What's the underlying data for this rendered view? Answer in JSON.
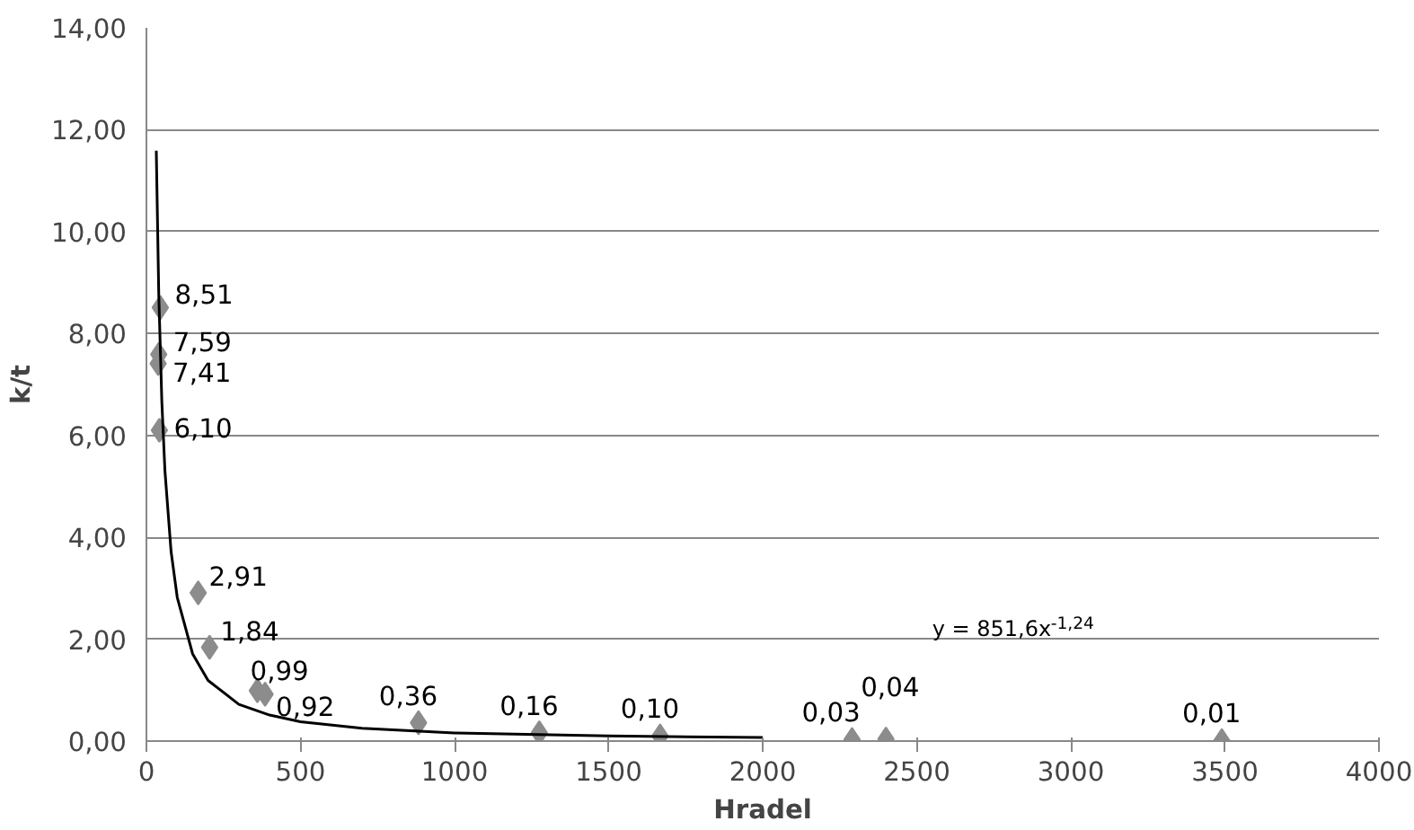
{
  "chart_data": {
    "type": "scatter",
    "xlabel": "Hradel",
    "ylabel": "k/t",
    "xlim": [
      0,
      4000
    ],
    "xticks": [
      0,
      500,
      1000,
      1500,
      2000,
      2500,
      3000,
      3500,
      4000
    ],
    "ylim": [
      0,
      14
    ],
    "yticks": [
      {
        "value": 0,
        "label": "0,00"
      },
      {
        "value": 2,
        "label": "2,00"
      },
      {
        "value": 4,
        "label": "4,00"
      },
      {
        "value": 6,
        "label": "6,00"
      },
      {
        "value": 8,
        "label": "8,00"
      },
      {
        "value": 10,
        "label": "10,00"
      },
      {
        "value": 12,
        "label": "12,00"
      },
      {
        "value": 14,
        "label": "14,00"
      }
    ],
    "grid": "y",
    "series": [
      {
        "color": "#8c8c8c",
        "marker": "diamond",
        "x": [
          45,
          40,
          38,
          42,
          168,
          205,
          360,
          385,
          883,
          1275,
          1667,
          2290,
          2400,
          3490
        ],
        "values": [
          8.51,
          7.59,
          7.41,
          6.1,
          2.91,
          1.84,
          0.99,
          0.92,
          0.36,
          0.16,
          0.1,
          0.03,
          0.04,
          0.01
        ],
        "value_labels": [
          "8,51",
          "7,59",
          "7,41",
          "6,10",
          "2,91",
          "1,84",
          "0,99",
          "0,92",
          "0,36",
          "0,16",
          "0,10",
          "0,03",
          "0,04",
          "0,01"
        ]
      },
      {
        "type": "line",
        "color": "#000000",
        "marker": "none",
        "line_style": "solid",
        "x": [
          32,
          40,
          50,
          60,
          80,
          100,
          150,
          200,
          300,
          400,
          500,
          700,
          1000,
          1500,
          2000
        ],
        "values": [
          11.59,
          8.78,
          6.66,
          5.31,
          3.72,
          2.82,
          1.71,
          1.19,
          0.72,
          0.51,
          0.38,
          0.25,
          0.16,
          0.1,
          0.07
        ]
      }
    ],
    "annotations": [
      "y = 851,6x$^{-1,24}$"
    ]
  }
}
